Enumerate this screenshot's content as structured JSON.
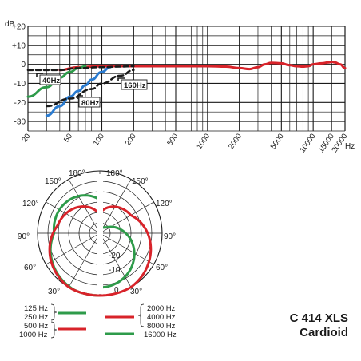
{
  "chart_data": [
    {
      "type": "line",
      "title": "",
      "ylabel": "dB",
      "xlabel": "Hz",
      "x_scale": "log",
      "xlim": [
        20,
        20000
      ],
      "ylim": [
        -35,
        20
      ],
      "y_ticks": [
        "+20",
        "+10",
        "0",
        "-10",
        "-20",
        "-30"
      ],
      "x_ticks": [
        "20",
        "50",
        "100",
        "200",
        "500",
        "1000",
        "2000",
        "5000",
        "10000",
        "15000",
        "20000"
      ],
      "grid": true,
      "colors": {
        "black": "#1a1a1a",
        "green": "#2e9b4a",
        "blue": "#2a7bd0",
        "red": "#d8232a"
      },
      "series": [
        {
          "color": "#d8232a",
          "style": "solid",
          "x": [
            40,
            60,
            100,
            200,
            500,
            1000,
            1500,
            2000,
            2500,
            3000,
            3500,
            4000,
            5000,
            6000,
            7000,
            8000,
            9000,
            10000,
            12000,
            14000,
            15000,
            16000,
            18000,
            20000
          ],
          "y": [
            -3,
            -1.5,
            -1,
            -1,
            -1,
            -1,
            -1.2,
            -2,
            -2.5,
            -1.5,
            0,
            0.8,
            0.5,
            -0.5,
            -1,
            -1.2,
            -1,
            0,
            0.5,
            1,
            1.3,
            1,
            0,
            -2
          ]
        },
        {
          "color": "#2e9b4a",
          "style": "solid",
          "x": [
            20,
            30,
            40,
            50,
            60,
            70
          ],
          "y": [
            -17,
            -12,
            -7,
            -4,
            -2,
            -1
          ]
        },
        {
          "color": "#2a7bd0",
          "style": "solid",
          "x": [
            30,
            40,
            50,
            60,
            70,
            80,
            100,
            120
          ],
          "y": [
            -27,
            -22,
            -17,
            -14,
            -11,
            -8,
            -4,
            -1.5
          ]
        },
        {
          "color": "#1a1a1a",
          "style": "dashed",
          "x": [
            20,
            40,
            60,
            100,
            150,
            200
          ],
          "y": [
            -3,
            -3,
            -2,
            -1.5,
            -1.2,
            -1
          ]
        },
        {
          "color": "#1a1a1a",
          "style": "dashed",
          "x": [
            30,
            50,
            80,
            100,
            150,
            200
          ],
          "y": [
            -22,
            -18,
            -13,
            -10,
            -6,
            -3
          ]
        }
      ],
      "annotations": [
        "40Hz",
        "80Hz",
        "160Hz"
      ]
    },
    {
      "type": "polar",
      "angle_labels": [
        "180°",
        "150°",
        "120°",
        "90°",
        "60°",
        "30°",
        "150°",
        "120°",
        "90°",
        "60°",
        "30°"
      ],
      "radial_labels": [
        "-20",
        "-10",
        "0"
      ],
      "legend": {
        "left": [
          {
            "label": "125 Hz",
            "group": "green"
          },
          {
            "label": "250 Hz",
            "group": "green"
          },
          {
            "label": "500 Hz",
            "group": "red"
          },
          {
            "label": "1000 Hz",
            "group": "red"
          }
        ],
        "right": [
          {
            "label": "2000 Hz",
            "group": "red"
          },
          {
            "label": "4000 Hz",
            "group": "red"
          },
          {
            "label": "8000 Hz",
            "group": "red"
          },
          {
            "label": "16000 Hz",
            "group": "green"
          }
        ]
      }
    }
  ],
  "product": {
    "name": "C 414 XLS",
    "pattern": "Cardioid"
  }
}
